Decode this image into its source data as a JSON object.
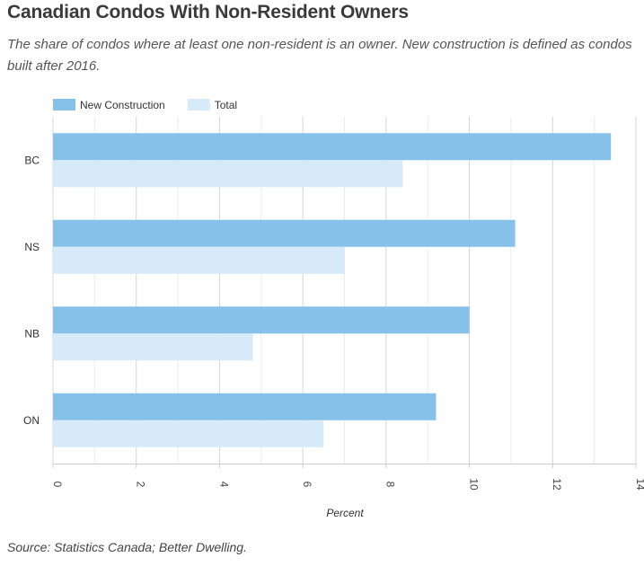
{
  "header": {
    "title": "Canadian Condos With Non-Resident Owners",
    "subtitle": "The share of condos where at least one non-resident is an owner. New construction is defined as condos built after 2016."
  },
  "footer": {
    "source": "Source: Statistics Canada; Better Dwelling."
  },
  "chart_data": {
    "type": "bar",
    "orientation": "horizontal",
    "categories": [
      "BC",
      "NS",
      "NB",
      "ON"
    ],
    "series": [
      {
        "name": "New Construction",
        "color": "#85c1e9",
        "values": [
          13.4,
          11.1,
          10.0,
          9.2
        ]
      },
      {
        "name": "Total",
        "color": "#d6eaf8",
        "values": [
          8.4,
          7.0,
          4.8,
          6.5
        ]
      }
    ],
    "xlabel": "Percent",
    "ylabel": "",
    "xlim": [
      0,
      14
    ],
    "xticks": [
      "0",
      "2",
      "4",
      "6",
      "8",
      "10",
      "12",
      "14"
    ],
    "grid": true,
    "legend_position": "top-left"
  }
}
